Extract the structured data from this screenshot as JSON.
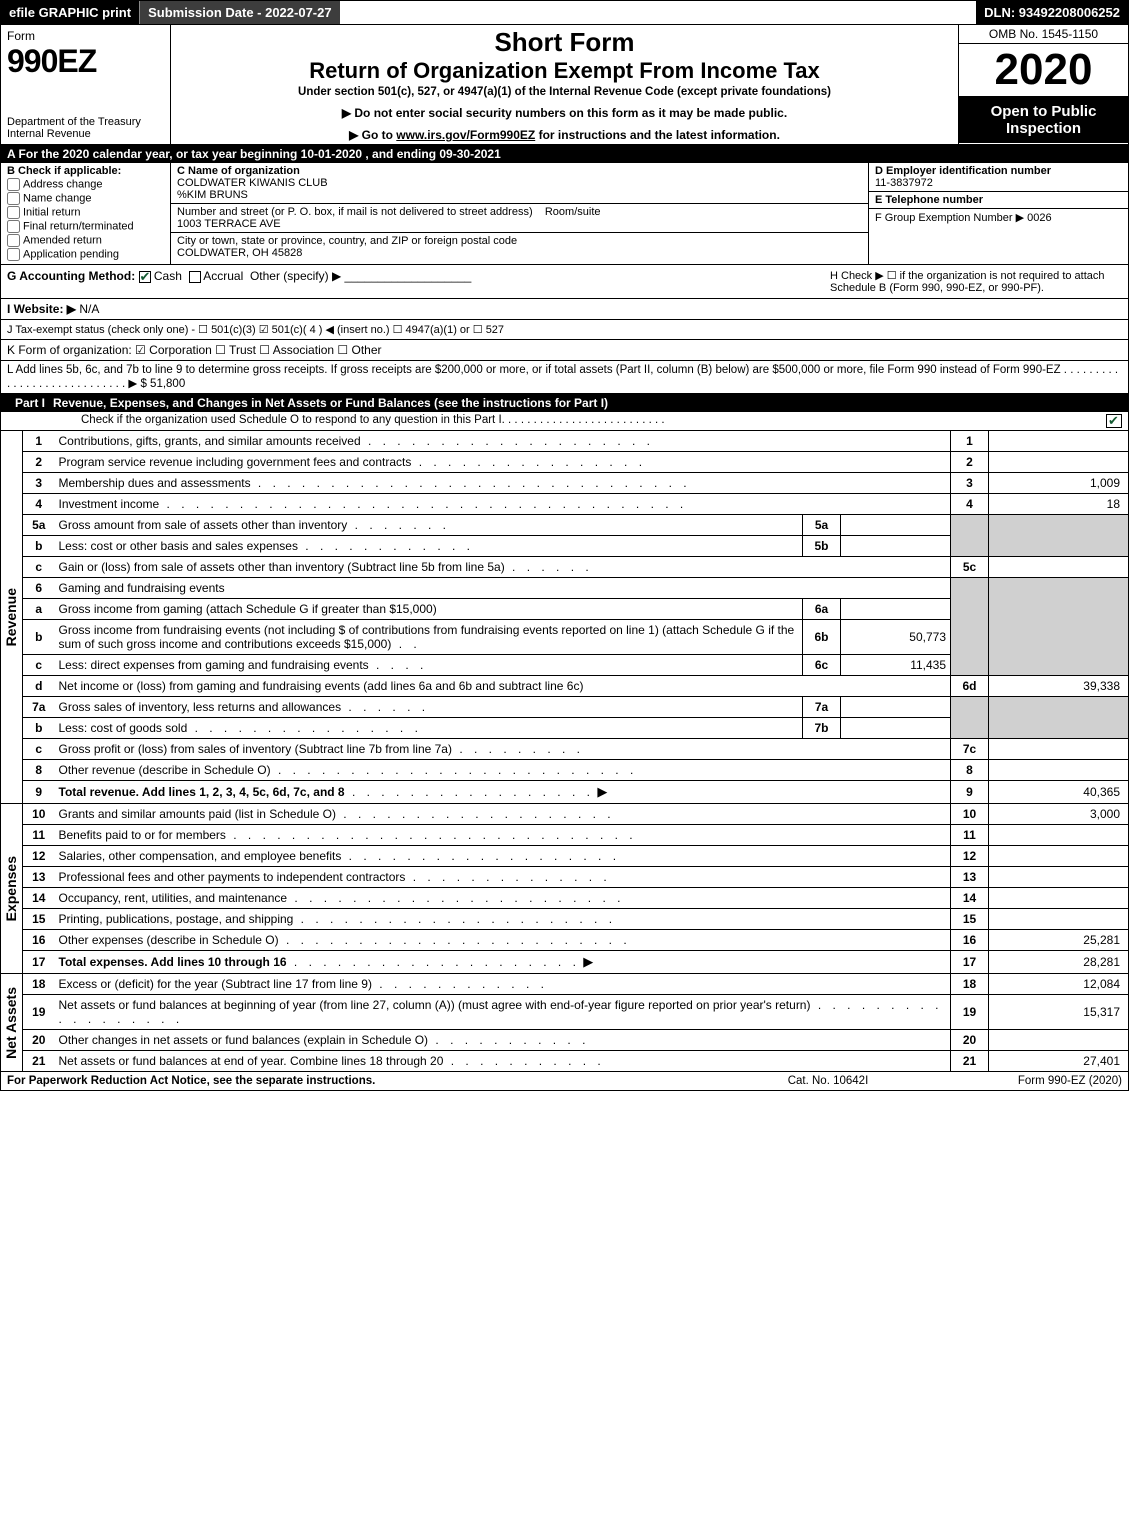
{
  "topbar": {
    "efile": "efile GRAPHIC print",
    "submission": "Submission Date - 2022-07-27",
    "dln": "DLN: 93492208006252"
  },
  "header": {
    "form_word": "Form",
    "form_number": "990EZ",
    "dept": "Department of the Treasury\nInternal Revenue",
    "short_form": "Short Form",
    "return_title": "Return of Organization Exempt From Income Tax",
    "under": "Under section 501(c), 527, or 4947(a)(1) of the Internal Revenue Code (except private foundations)",
    "arrow1": "▶ Do not enter social security numbers on this form as it may be made public.",
    "arrow2_pre": "▶ Go to ",
    "arrow2_link": "www.irs.gov/Form990EZ",
    "arrow2_post": " for instructions and the latest information.",
    "omb": "OMB No. 1545-1150",
    "year": "2020",
    "open": "Open to Public Inspection"
  },
  "line_a": "A  For the 2020 calendar year, or tax year beginning 10-01-2020 , and ending 09-30-2021",
  "box_b": {
    "head": "B  Check if applicable:",
    "opts": [
      "Address change",
      "Name change",
      "Initial return",
      "Final return/terminated",
      "Amended return",
      "Application pending"
    ]
  },
  "box_c": {
    "c_label": "C Name of organization",
    "org": "COLDWATER KIWANIS CLUB",
    "care": "%KIM BRUNS",
    "street_label": "Number and street (or P. O. box, if mail is not delivered to street address)",
    "room_label": "Room/suite",
    "street": "1003 TERRACE AVE",
    "city_label": "City or town, state or province, country, and ZIP or foreign postal code",
    "city": "COLDWATER, OH  45828"
  },
  "box_de": {
    "d_label": "D Employer identification number",
    "ein": "11-3837972",
    "e_label": "E Telephone number",
    "phone": "",
    "f_label": "F Group Exemption Number  ▶ 0026"
  },
  "line_g": {
    "label": "G Accounting Method:",
    "cash": "Cash",
    "accrual": "Accrual",
    "other": "Other (specify) ▶"
  },
  "line_h": "H  Check ▶ ☐ if the organization is not required to attach Schedule B (Form 990, 990-EZ, or 990-PF).",
  "line_i": {
    "label": "I Website: ▶",
    "val": "N/A"
  },
  "line_j": "J Tax-exempt status (check only one) - ☐ 501(c)(3) ☑ 501(c)( 4 ) ◀ (insert no.) ☐ 4947(a)(1) or ☐ 527",
  "line_k": "K Form of organization:  ☑ Corporation  ☐ Trust  ☐ Association  ☐ Other",
  "line_l": "L Add lines 5b, 6c, and 7b to line 9 to determine gross receipts. If gross receipts are $200,000 or more, or if total assets (Part II, column (B) below) are $500,000 or more, file Form 990 instead of Form 990-EZ  .  .  .  .  .  .  .  .  .  .  .  .  .  .  .  .  .  .  .  .  .  .  .  .  .  .  .  .  ▶ $ 51,800",
  "part1": {
    "label": "Part I",
    "title": "Revenue, Expenses, and Changes in Net Assets or Fund Balances (see the instructions for Part I)",
    "check": "Check if the organization used Schedule O to respond to any question in this Part I"
  },
  "sections": {
    "rev": "Revenue",
    "exp": "Expenses",
    "na": "Net Assets"
  },
  "rows": {
    "r1": {
      "n": "1",
      "d": "Contributions, gifts, grants, and similar amounts received",
      "rn": "1",
      "v": ""
    },
    "r2": {
      "n": "2",
      "d": "Program service revenue including government fees and contracts",
      "rn": "2",
      "v": ""
    },
    "r3": {
      "n": "3",
      "d": "Membership dues and assessments",
      "rn": "3",
      "v": "1,009"
    },
    "r4": {
      "n": "4",
      "d": "Investment income",
      "rn": "4",
      "v": "18"
    },
    "r5a": {
      "n": "5a",
      "d": "Gross amount from sale of assets other than inventory",
      "sn": "5a",
      "sv": ""
    },
    "r5b": {
      "n": "b",
      "d": "Less: cost or other basis and sales expenses",
      "sn": "5b",
      "sv": ""
    },
    "r5c": {
      "n": "c",
      "d": "Gain or (loss) from sale of assets other than inventory (Subtract line 5b from line 5a)",
      "rn": "5c",
      "v": ""
    },
    "r6": {
      "n": "6",
      "d": "Gaming and fundraising events"
    },
    "r6a": {
      "n": "a",
      "d": "Gross income from gaming (attach Schedule G if greater than $15,000)",
      "sn": "6a",
      "sv": ""
    },
    "r6b": {
      "n": "b",
      "d": "Gross income from fundraising events (not including $            of contributions from fundraising events reported on line 1) (attach Schedule G if the sum of such gross income and contributions exceeds $15,000)",
      "sn": "6b",
      "sv": "50,773"
    },
    "r6c": {
      "n": "c",
      "d": "Less: direct expenses from gaming and fundraising events",
      "sn": "6c",
      "sv": "11,435"
    },
    "r6d": {
      "n": "d",
      "d": "Net income or (loss) from gaming and fundraising events (add lines 6a and 6b and subtract line 6c)",
      "rn": "6d",
      "v": "39,338"
    },
    "r7a": {
      "n": "7a",
      "d": "Gross sales of inventory, less returns and allowances",
      "sn": "7a",
      "sv": ""
    },
    "r7b": {
      "n": "b",
      "d": "Less: cost of goods sold",
      "sn": "7b",
      "sv": ""
    },
    "r7c": {
      "n": "c",
      "d": "Gross profit or (loss) from sales of inventory (Subtract line 7b from line 7a)",
      "rn": "7c",
      "v": ""
    },
    "r8": {
      "n": "8",
      "d": "Other revenue (describe in Schedule O)",
      "rn": "8",
      "v": ""
    },
    "r9": {
      "n": "9",
      "d": "Total revenue. Add lines 1, 2, 3, 4, 5c, 6d, 7c, and 8",
      "rn": "9",
      "v": "40,365",
      "arrow": "▶"
    },
    "r10": {
      "n": "10",
      "d": "Grants and similar amounts paid (list in Schedule O)",
      "rn": "10",
      "v": "3,000"
    },
    "r11": {
      "n": "11",
      "d": "Benefits paid to or for members",
      "rn": "11",
      "v": ""
    },
    "r12": {
      "n": "12",
      "d": "Salaries, other compensation, and employee benefits",
      "rn": "12",
      "v": ""
    },
    "r13": {
      "n": "13",
      "d": "Professional fees and other payments to independent contractors",
      "rn": "13",
      "v": ""
    },
    "r14": {
      "n": "14",
      "d": "Occupancy, rent, utilities, and maintenance",
      "rn": "14",
      "v": ""
    },
    "r15": {
      "n": "15",
      "d": "Printing, publications, postage, and shipping",
      "rn": "15",
      "v": ""
    },
    "r16": {
      "n": "16",
      "d": "Other expenses (describe in Schedule O)",
      "rn": "16",
      "v": "25,281"
    },
    "r17": {
      "n": "17",
      "d": "Total expenses. Add lines 10 through 16",
      "rn": "17",
      "v": "28,281",
      "arrow": "▶"
    },
    "r18": {
      "n": "18",
      "d": "Excess or (deficit) for the year (Subtract line 17 from line 9)",
      "rn": "18",
      "v": "12,084"
    },
    "r19": {
      "n": "19",
      "d": "Net assets or fund balances at beginning of year (from line 27, column (A)) (must agree with end-of-year figure reported on prior year's return)",
      "rn": "19",
      "v": "15,317"
    },
    "r20": {
      "n": "20",
      "d": "Other changes in net assets or fund balances (explain in Schedule O)",
      "rn": "20",
      "v": ""
    },
    "r21": {
      "n": "21",
      "d": "Net assets or fund balances at end of year. Combine lines 18 through 20",
      "rn": "21",
      "v": "27,401"
    }
  },
  "footer": {
    "left": "For Paperwork Reduction Act Notice, see the separate instructions.",
    "center": "Cat. No. 10642I",
    "right": "Form 990-EZ (2020)"
  }
}
